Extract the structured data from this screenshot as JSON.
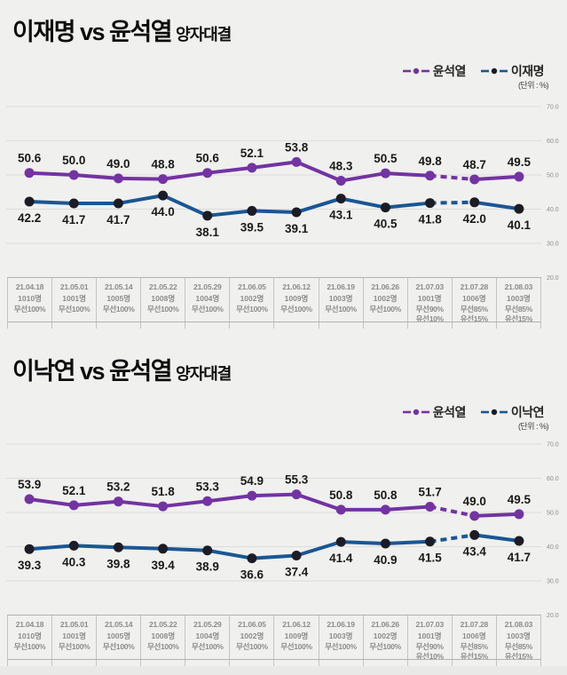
{
  "theme": {
    "background": "#f0f0ee",
    "gridline_color": "#dcdcda",
    "tick_label_color": "#8f8f8f",
    "value_label_color": "#1a1a1a",
    "table_text_color": "#8c8c8c",
    "purple": "#7333a2",
    "navy_line": "#1a5694",
    "navy_dot": "#1c1c26"
  },
  "charts": [
    {
      "title_main": "이재명 vs 윤석열",
      "title_sub": "양자대결",
      "unit_label": "(단위 : %)",
      "legend": [
        {
          "label": "윤석열",
          "color": "#7333a2",
          "dot": "#7333a2"
        },
        {
          "label": "이재명",
          "color": "#1a5694",
          "dot": "#1c1c26"
        }
      ],
      "chart_data": {
        "type": "line",
        "title": "이재명 vs 윤석열 양자대결",
        "xlabel": "",
        "ylabel": "(단위 : %)",
        "categories": [
          "21.04.18",
          "21.05.01",
          "21.05.14",
          "21.05.22",
          "21.05.29",
          "21.06.05",
          "21.06.12",
          "21.06.19",
          "21.06.26",
          "21.07.03",
          "21.07.28",
          "21.08.03"
        ],
        "series": [
          {
            "name": "윤석열",
            "color": "#7333a2",
            "dot_color": "#7333a2",
            "label_pos": "above",
            "dashed_segment": [
              9,
              10
            ],
            "values": [
              50.6,
              50.0,
              49.0,
              48.8,
              50.6,
              52.1,
              53.8,
              48.3,
              50.5,
              49.8,
              48.7,
              49.5
            ]
          },
          {
            "name": "이재명",
            "color": "#1a5694",
            "dot_color": "#1c1c26",
            "label_pos": "below",
            "dashed_segment": [
              9,
              10
            ],
            "values": [
              42.2,
              41.7,
              41.7,
              44.0,
              38.1,
              39.5,
              39.1,
              43.1,
              40.5,
              41.8,
              42.0,
              40.1
            ]
          }
        ],
        "ylim": [
          20,
          70
        ],
        "yticks": [
          70,
          60,
          50,
          40,
          30,
          20
        ],
        "ytick_labels": [
          "70.0",
          "60.0",
          "50.0",
          "40.0",
          "30.0",
          "20.0"
        ],
        "grid": true,
        "legend_position": "top-right"
      },
      "table": {
        "columns": [
          {
            "date": "21.04.18",
            "sample": "1010명",
            "method": [
              "무선100%"
            ]
          },
          {
            "date": "21.05.01",
            "sample": "1001명",
            "method": [
              "무선100%"
            ]
          },
          {
            "date": "21.05.14",
            "sample": "1005명",
            "method": [
              "무선100%"
            ]
          },
          {
            "date": "21.05.22",
            "sample": "1008명",
            "method": [
              "무선100%"
            ]
          },
          {
            "date": "21.05.29",
            "sample": "1004명",
            "method": [
              "무선100%"
            ]
          },
          {
            "date": "21.06.05",
            "sample": "1002명",
            "method": [
              "무선100%"
            ]
          },
          {
            "date": "21.06.12",
            "sample": "1009명",
            "method": [
              "무선100%"
            ]
          },
          {
            "date": "21.06.19",
            "sample": "1003명",
            "method": [
              "무선100%"
            ]
          },
          {
            "date": "21.06.26",
            "sample": "1002명",
            "method": [
              "무선100%"
            ]
          },
          {
            "date": "21.07.03",
            "sample": "1001명",
            "method": [
              "무선90%",
              "유선10%"
            ]
          },
          {
            "date": "21.07.28",
            "sample": "1006명",
            "method": [
              "무선85%",
              "유선15%"
            ]
          },
          {
            "date": "21.08.03",
            "sample": "1003명",
            "method": [
              "무선85%",
              "유선15%"
            ]
          }
        ]
      }
    },
    {
      "title_main": "이낙연 vs 윤석열",
      "title_sub": "양자대결",
      "unit_label": "(단위 : %)",
      "legend": [
        {
          "label": "윤석열",
          "color": "#7333a2",
          "dot": "#7333a2"
        },
        {
          "label": "이낙연",
          "color": "#1a5694",
          "dot": "#1c1c26"
        }
      ],
      "chart_data": {
        "type": "line",
        "title": "이낙연 vs 윤석열 양자대결",
        "xlabel": "",
        "ylabel": "(단위 : %)",
        "categories": [
          "21.04.18",
          "21.05.01",
          "21.05.14",
          "21.05.22",
          "21.05.29",
          "21.06.05",
          "21.06.12",
          "21.06.19",
          "21.06.26",
          "21.07.03",
          "21.07.28",
          "21.08.03"
        ],
        "series": [
          {
            "name": "윤석열",
            "color": "#7333a2",
            "dot_color": "#7333a2",
            "label_pos": "above",
            "dashed_segment": [
              9,
              10
            ],
            "values": [
              53.9,
              52.1,
              53.2,
              51.8,
              53.3,
              54.9,
              55.3,
              50.8,
              50.8,
              51.7,
              49.0,
              49.5
            ]
          },
          {
            "name": "이낙연",
            "color": "#1a5694",
            "dot_color": "#1c1c26",
            "label_pos": "below",
            "dashed_segment": [
              9,
              10
            ],
            "values": [
              39.3,
              40.3,
              39.8,
              39.4,
              38.9,
              36.6,
              37.4,
              41.4,
              40.9,
              41.5,
              43.4,
              41.7
            ]
          }
        ],
        "ylim": [
          20,
          70
        ],
        "yticks": [
          70,
          60,
          50,
          40,
          30,
          20
        ],
        "ytick_labels": [
          "70.0",
          "60.0",
          "50.0",
          "40.0",
          "30.0",
          "20.0"
        ],
        "grid": true,
        "legend_position": "top-right"
      },
      "table": {
        "columns": [
          {
            "date": "21.04.18",
            "sample": "1010명",
            "method": [
              "무선100%"
            ]
          },
          {
            "date": "21.05.01",
            "sample": "1001명",
            "method": [
              "무선100%"
            ]
          },
          {
            "date": "21.05.14",
            "sample": "1005명",
            "method": [
              "무선100%"
            ]
          },
          {
            "date": "21.05.22",
            "sample": "1008명",
            "method": [
              "무선100%"
            ]
          },
          {
            "date": "21.05.29",
            "sample": "1004명",
            "method": [
              "무선100%"
            ]
          },
          {
            "date": "21.06.05",
            "sample": "1002명",
            "method": [
              "무선100%"
            ]
          },
          {
            "date": "21.06.12",
            "sample": "1009명",
            "method": [
              "무선100%"
            ]
          },
          {
            "date": "21.06.19",
            "sample": "1003명",
            "method": [
              "무선100%"
            ]
          },
          {
            "date": "21.06.26",
            "sample": "1002명",
            "method": [
              "무선100%"
            ]
          },
          {
            "date": "21.07.03",
            "sample": "1001명",
            "method": [
              "무선90%",
              "유선10%"
            ]
          },
          {
            "date": "21.07.28",
            "sample": "1006명",
            "method": [
              "무선85%",
              "유선15%"
            ]
          },
          {
            "date": "21.08.03",
            "sample": "1003명",
            "method": [
              "무선85%",
              "유선15%"
            ]
          }
        ]
      }
    }
  ]
}
